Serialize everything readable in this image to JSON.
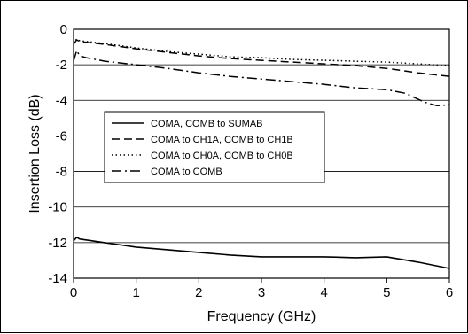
{
  "chart_data": {
    "type": "line",
    "title": "",
    "xlabel": "Frequency (GHz)",
    "ylabel": "Insertion Loss (dB)",
    "xlim": [
      0,
      6
    ],
    "ylim": [
      -14,
      0
    ],
    "xticks": [
      0,
      1,
      2,
      3,
      4,
      5,
      6
    ],
    "yticks": [
      0,
      -2,
      -4,
      -6,
      -8,
      -10,
      -12,
      -14
    ],
    "grid": "horizontal",
    "legend_position": "center-left",
    "series": [
      {
        "name": "COMA, COMB to SUMAB",
        "style": "solid",
        "color": "#000000",
        "x": [
          0,
          0.05,
          0.1,
          0.2,
          0.5,
          1,
          1.5,
          2,
          2.5,
          3,
          3.5,
          4,
          4.5,
          5,
          5.5,
          6
        ],
        "y": [
          -11.9,
          -11.7,
          -11.8,
          -11.85,
          -12.0,
          -12.25,
          -12.4,
          -12.55,
          -12.7,
          -12.8,
          -12.8,
          -12.8,
          -12.85,
          -12.8,
          -13.1,
          -13.45
        ]
      },
      {
        "name": "COMA to CH1A, COMB to CH1B",
        "style": "dashed",
        "color": "#000000",
        "x": [
          0,
          0.05,
          0.1,
          0.5,
          1,
          1.5,
          2,
          2.5,
          3,
          3.5,
          4,
          4.5,
          5,
          5.5,
          6
        ],
        "y": [
          -0.85,
          -0.6,
          -0.7,
          -0.85,
          -1.1,
          -1.3,
          -1.5,
          -1.65,
          -1.75,
          -1.85,
          -1.95,
          -2.05,
          -2.2,
          -2.45,
          -2.65
        ]
      },
      {
        "name": "COMA to CH0A, COMB to CH0B",
        "style": "dotted",
        "color": "#000000",
        "x": [
          0,
          0.05,
          0.1,
          0.5,
          1,
          1.5,
          2,
          2.5,
          3,
          3.5,
          4,
          4.5,
          5,
          5.5,
          6
        ],
        "y": [
          -0.8,
          -0.55,
          -0.65,
          -0.8,
          -1.05,
          -1.25,
          -1.4,
          -1.55,
          -1.6,
          -1.7,
          -1.75,
          -1.8,
          -1.85,
          -1.95,
          -2.05
        ]
      },
      {
        "name": "COMA to COMB",
        "style": "dashdot",
        "color": "#000000",
        "x": [
          0,
          0.05,
          0.1,
          0.2,
          0.5,
          1,
          1.5,
          2,
          2.5,
          3,
          3.5,
          4,
          4.5,
          5,
          5.3,
          5.6,
          5.8,
          6
        ],
        "y": [
          -1.8,
          -1.2,
          -1.5,
          -1.6,
          -1.8,
          -2.0,
          -2.2,
          -2.45,
          -2.65,
          -2.8,
          -2.95,
          -3.1,
          -3.3,
          -3.4,
          -3.6,
          -4.1,
          -4.3,
          -4.25
        ]
      }
    ]
  }
}
